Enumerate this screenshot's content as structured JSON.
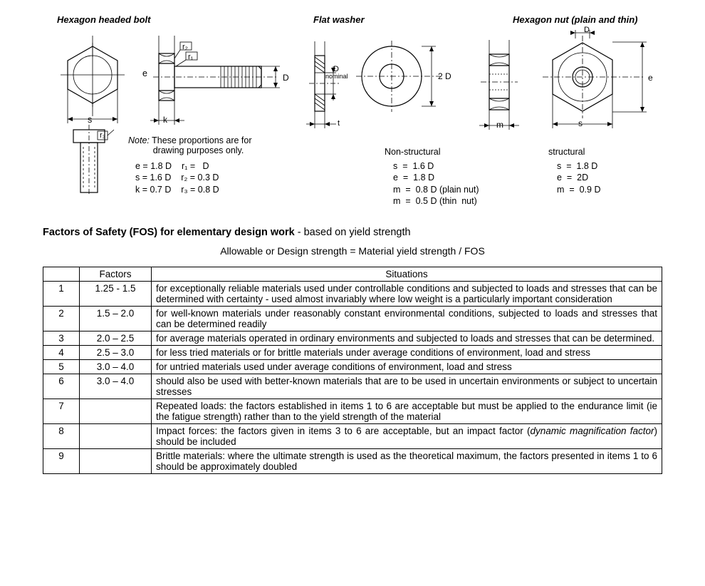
{
  "headings": {
    "bolt": "Hexagon headed bolt",
    "washer": "Flat washer",
    "nut": "Hexagon nut (plain and thin)"
  },
  "note": {
    "label": "Note:",
    "text_l1": "These proportions are for",
    "text_l2": "drawing purposes only."
  },
  "bolt_eq": {
    "l1a": "e = 1.8 D",
    "l1b": "r₁ =   D",
    "l2a": "s = 1.6 D",
    "l2b": "r₂ = 0.3 D",
    "l3a": "k = 0.7 D",
    "l3b": "r₃ = 0.8 D"
  },
  "washer_labels": {
    "nominal": "nominal",
    "D": "D",
    "twoD": "2 D",
    "t": "t"
  },
  "nonstruct": {
    "title": "Non-structural",
    "l1": "s  =  1.6 D",
    "l2": "e  =  1.8 D",
    "l3": "m  =  0.8 D (plain nut)",
    "l4": "m  =  0.5 D (thin  nut)"
  },
  "struct": {
    "title": "structural",
    "l1": "s  =  1.8 D",
    "l2": "e  =  2D",
    "l3": "m  =  0.9 D"
  },
  "dims": {
    "e": "e",
    "s": "s",
    "k": "k",
    "D": "D",
    "m": "m",
    "r1": "r₁",
    "r2": "r₂",
    "r3": "r₃"
  },
  "fos_heading_bold": "Factors of Safety (FOS) for elementary design work",
  "fos_heading_rest": " - based on yield strength",
  "fos_formula": "Allowable or Design strength = Material yield strength / FOS",
  "fos_table": {
    "col_factors": "Factors",
    "col_situations": "Situations",
    "rows": [
      {
        "n": "1",
        "f": "1.25 - 1.5",
        "s": "for exceptionally reliable materials used under controllable conditions and subjected to loads and stresses that can be determined with certainty - used almost invariably where low weight is a particularly important consideration"
      },
      {
        "n": "2",
        "f": "1.5 – 2.0",
        "s": "for well-known materials under reasonably constant environmental conditions, subjected to loads and stresses that can be determined readily"
      },
      {
        "n": "3",
        "f": "2.0 – 2.5",
        "s": "for average materials operated in ordinary environments and subjected to loads and stresses that can be determined."
      },
      {
        "n": "4",
        "f": "2.5 – 3.0",
        "s": "for less tried materials or for brittle materials under average conditions of environment, load and stress"
      },
      {
        "n": "5",
        "f": "3.0 – 4.0",
        "s": "for untried materials used under average conditions of environment, load and stress"
      },
      {
        "n": "6",
        "f": "3.0 – 4.0",
        "s": "should also be used with better-known materials that are to be used in uncertain environments or subject to uncertain stresses"
      },
      {
        "n": "7",
        "f": "",
        "s": "Repeated loads: the factors established in items 1 to 6 are acceptable but must be applied to the endurance limit (ie the fatigue strength) rather than to the yield strength of the material"
      },
      {
        "n": "8",
        "f": "",
        "s": "Impact forces: the factors given in items 3 to 6 are acceptable, but an impact factor (<i>dynamic magnification factor</i>) should be included"
      },
      {
        "n": "9",
        "f": "",
        "s": "Brittle materials: where the ultimate strength is used as the theoretical maximum, the factors presented in items 1 to 6 should be approximately doubled"
      }
    ]
  },
  "colors": {
    "stroke": "#000000",
    "bg": "#ffffff"
  }
}
